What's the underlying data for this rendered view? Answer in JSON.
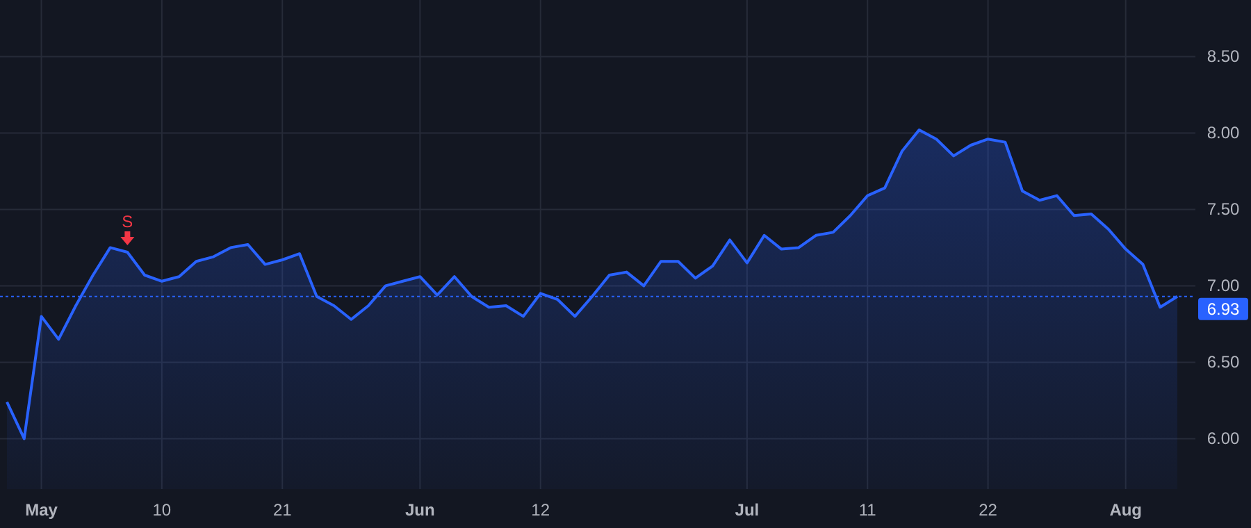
{
  "chart_data": {
    "type": "area",
    "categories": [
      null,
      null,
      "May",
      null,
      null,
      null,
      null,
      null,
      null,
      "10",
      null,
      null,
      null,
      null,
      null,
      null,
      "21",
      null,
      null,
      null,
      null,
      null,
      null,
      null,
      "Jun",
      null,
      null,
      null,
      null,
      null,
      null,
      "12",
      null,
      null,
      null,
      null,
      null,
      null,
      null,
      null,
      null,
      null,
      null,
      "Jul",
      null,
      null,
      null,
      null,
      null,
      null,
      "11",
      null,
      null,
      null,
      null,
      null,
      null,
      "22",
      null,
      null,
      null,
      null,
      null,
      null,
      null,
      "Aug",
      null,
      null,
      null
    ],
    "series": [
      {
        "color": "#2962ff",
        "values": [
          6.24,
          6.0,
          6.8,
          6.65,
          6.87,
          7.07,
          7.25,
          7.22,
          7.07,
          7.03,
          7.06,
          7.16,
          7.19,
          7.25,
          7.27,
          7.14,
          7.17,
          7.21,
          6.93,
          6.87,
          6.78,
          6.87,
          7.0,
          7.03,
          7.06,
          6.94,
          7.06,
          6.93,
          6.86,
          6.87,
          6.8,
          6.95,
          6.91,
          6.8,
          6.93,
          7.07,
          7.09,
          7.0,
          7.16,
          7.16,
          7.05,
          7.13,
          7.3,
          7.15,
          7.33,
          7.24,
          7.25,
          7.33,
          7.35,
          7.46,
          7.59,
          7.64,
          7.88,
          8.02,
          7.96,
          7.85,
          7.92,
          7.96,
          7.94,
          7.62,
          7.56,
          7.59,
          7.46,
          7.47,
          7.37,
          7.24,
          7.14,
          6.86,
          6.93
        ]
      }
    ],
    "ylim": [
      5.67,
      8.87
    ],
    "yticks": [
      {
        "value": 6,
        "label": "6.00"
      },
      {
        "value": 6.5,
        "label": "6.50"
      },
      {
        "value": 7,
        "label": "7.00"
      },
      {
        "value": 7.5,
        "label": "7.50"
      },
      {
        "value": 8,
        "label": "8.00"
      },
      {
        "value": 8.5,
        "label": "8.50"
      }
    ],
    "grid": true,
    "ref_lines": [
      {
        "axis": "y",
        "value": 6.93,
        "label": "6.93",
        "color": "#2962ff",
        "line_style": "dotted"
      }
    ],
    "annotations": [
      {
        "text": "S",
        "y": 7.22
      }
    ]
  }
}
